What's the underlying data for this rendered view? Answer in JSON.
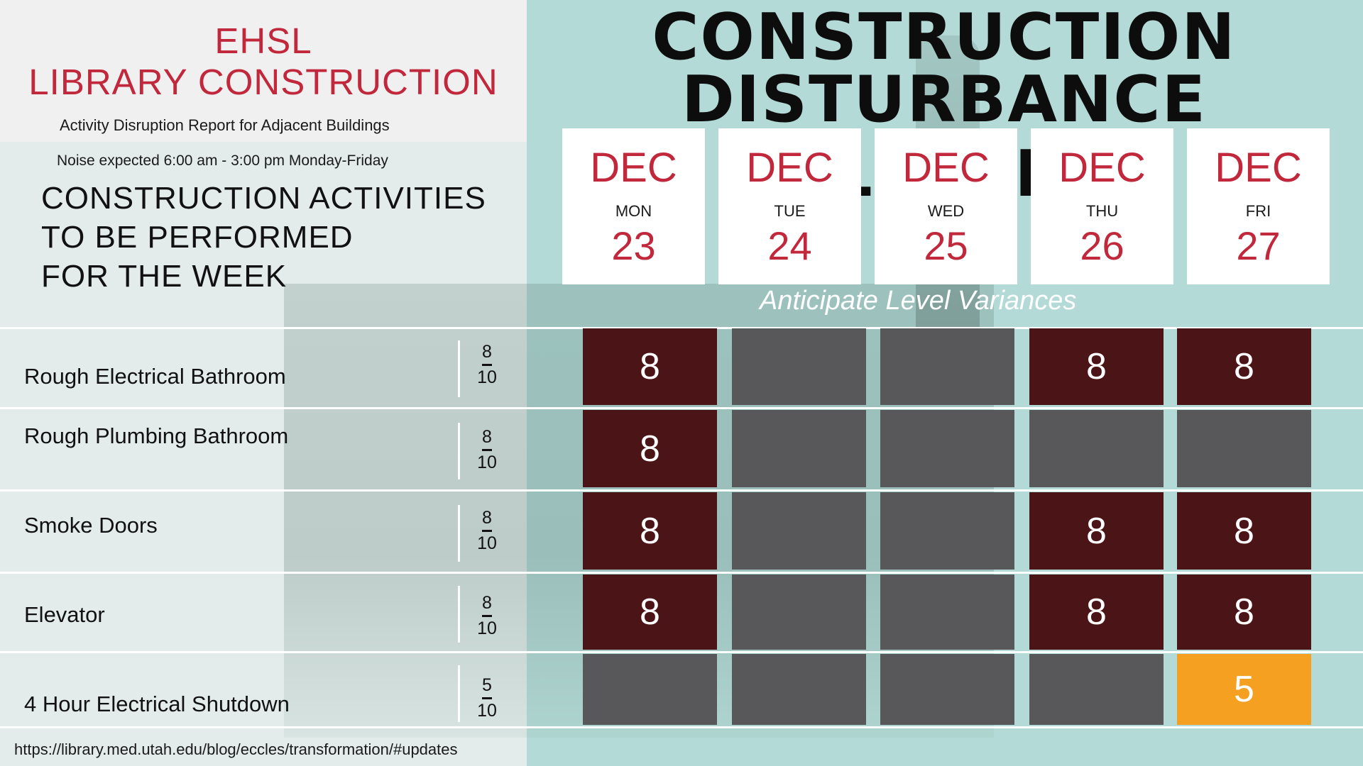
{
  "header": {
    "title_line1": "EHSL",
    "title_line2": "LIBRARY CONSTRUCTION",
    "subtitle": "Activity Disruption Report for Adjacent Buildings",
    "noise": "Noise expected 6:00 am - 3:00 pm Monday-Friday",
    "activities_line1": "CONSTRUCTION ACTIVITIES",
    "activities_line2": "TO BE PERFORMED",
    "activities_line3": "FOR THE WEEK"
  },
  "main_title": {
    "line1": "CONSTRUCTION",
    "line2": "DISTURBANCE LEVEL"
  },
  "days": [
    {
      "month": "DEC",
      "weekday": "MON",
      "date": "23"
    },
    {
      "month": "DEC",
      "weekday": "TUE",
      "date": "24"
    },
    {
      "month": "DEC",
      "weekday": "WED",
      "date": "25"
    },
    {
      "month": "DEC",
      "weekday": "THU",
      "date": "26"
    },
    {
      "month": "DEC",
      "weekday": "FRI",
      "date": "27"
    }
  ],
  "variance_note": "Anticipate Level Variances",
  "activities": [
    {
      "name": "Rough Electrical Bathroom",
      "level": "8",
      "scale": "10",
      "days": [
        "8",
        "",
        "",
        "8",
        "8"
      ]
    },
    {
      "name": "Rough Plumbing Bathroom",
      "level": "8",
      "scale": "10",
      "days": [
        "8",
        "",
        "",
        "",
        ""
      ]
    },
    {
      "name": "Smoke Doors",
      "level": "8",
      "scale": "10",
      "days": [
        "8",
        "",
        "",
        "8",
        "8"
      ]
    },
    {
      "name": "Elevator",
      "level": "8",
      "scale": "10",
      "days": [
        "8",
        "",
        "",
        "8",
        "8"
      ]
    },
    {
      "name": "4 Hour Electrical Shutdown",
      "level": "5",
      "scale": "10",
      "days": [
        "",
        "",
        "",
        "",
        "5"
      ]
    }
  ],
  "colors": {
    "high": "#4b1518",
    "none": "#58585a",
    "mid": "#f5a020",
    "accent_red": "#c1283c"
  },
  "footer_url": "https://library.med.utah.edu/blog/eccles/transformation/#updates"
}
